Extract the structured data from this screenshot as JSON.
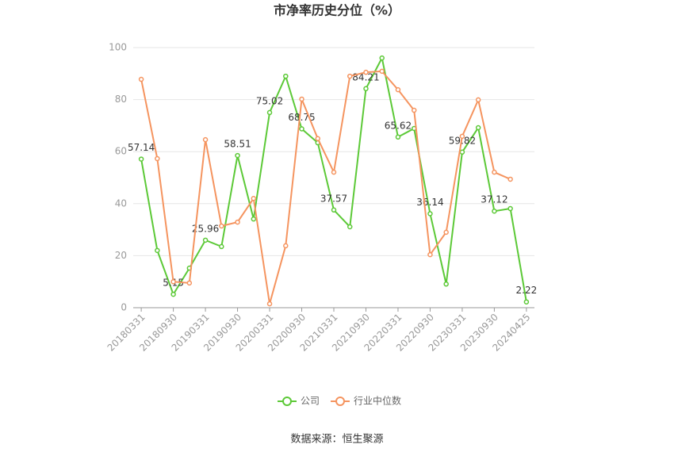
{
  "chart_data": {
    "type": "line",
    "title": "市净率历史分位（%）",
    "categories": [
      "20180331",
      null,
      "20180930",
      null,
      "20190331",
      null,
      "20190930",
      null,
      "20200331",
      null,
      "20200930",
      null,
      "20210331",
      null,
      "20210930",
      null,
      "20220331",
      null,
      "20220930",
      null,
      "20230331",
      null,
      "20230930",
      null,
      "20240425"
    ],
    "series": [
      {
        "name": "公司",
        "color": "#5cc937",
        "values": [
          57.14,
          22,
          5.15,
          15.2,
          25.96,
          23.5,
          58.51,
          34.1,
          75.02,
          89,
          68.75,
          63.4,
          37.57,
          31.1,
          84.21,
          96,
          65.62,
          68.9,
          36.14,
          9.1,
          59.82,
          69.2,
          37.12,
          38.1,
          2.22
        ]
      },
      {
        "name": "行业中位数",
        "color": "#f5945f",
        "values": [
          87.8,
          57.3,
          10,
          9.5,
          64.6,
          31.4,
          32.9,
          42,
          1.5,
          23.8,
          80.2,
          65,
          52.1,
          89,
          90.5,
          90.9,
          83.8,
          75.9,
          20.4,
          29,
          65.9,
          79.9,
          52.1,
          49.4,
          null
        ]
      }
    ],
    "ylim": [
      0,
      100
    ],
    "yticks": [
      0,
      20,
      40,
      60,
      80,
      100
    ],
    "grid": true,
    "source": "数据来源：恒生聚源"
  }
}
